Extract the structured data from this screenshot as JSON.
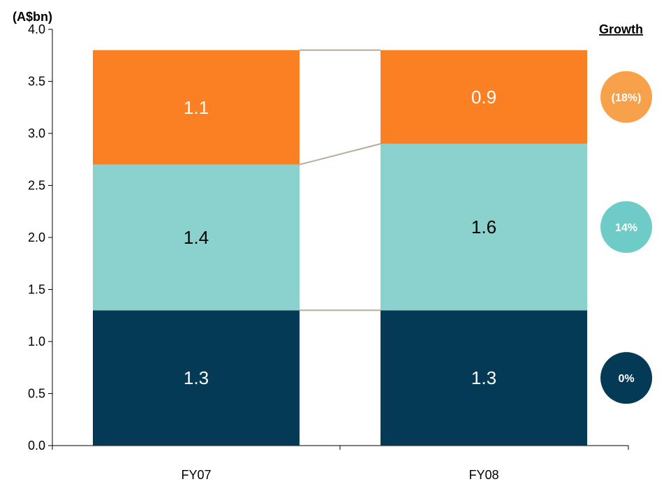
{
  "chart_data": {
    "type": "bar",
    "stacked": true,
    "unit_label": "(A$bn)",
    "categories": [
      "FY07",
      "FY08"
    ],
    "ylim": [
      0,
      4.0
    ],
    "yticks": [
      "0.0",
      "0.5",
      "1.0",
      "1.5",
      "2.0",
      "2.5",
      "3.0",
      "3.5",
      "4.0"
    ],
    "grid": false,
    "series": [
      {
        "values": [
          1.3,
          1.3
        ],
        "labels": [
          "1.3",
          "1.3"
        ],
        "color": "#053a56",
        "label_color": "#ffffff"
      },
      {
        "values": [
          1.4,
          1.6
        ],
        "labels": [
          "1.4",
          "1.6"
        ],
        "color": "#8bd2cf",
        "label_color": "#000000"
      },
      {
        "values": [
          1.1,
          0.9
        ],
        "labels": [
          "1.1",
          "0.9"
        ],
        "color": "#fb8023",
        "label_color": "#ffffff"
      }
    ],
    "connector_color": "#b8ab98",
    "growth": {
      "title": "Growth",
      "items": [
        {
          "label": "0%",
          "color": "#053a56"
        },
        {
          "label": "14%",
          "color": "#6ecbc8"
        },
        {
          "label": "(18%)",
          "color": "#f7a24b"
        }
      ]
    }
  }
}
